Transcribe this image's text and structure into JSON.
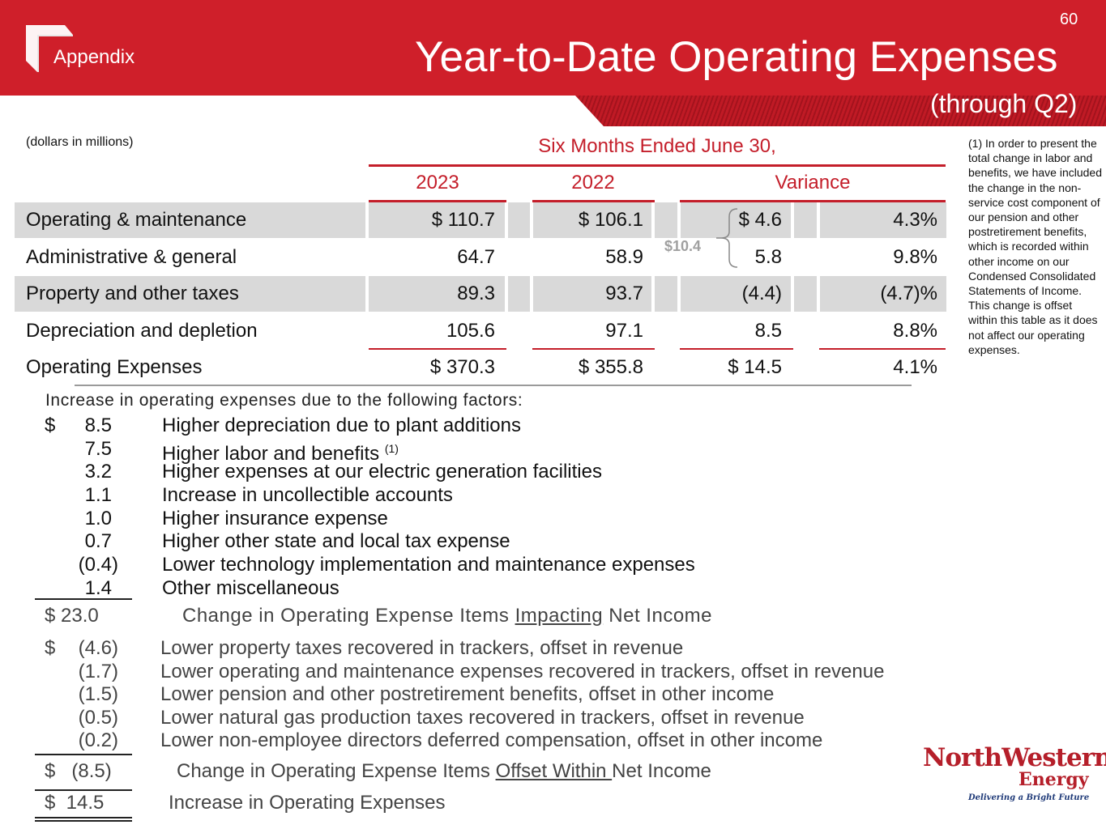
{
  "header": {
    "page_number": "60",
    "section": "Appendix",
    "title": "Year-to-Date Operating Expenses",
    "subtitle": "(through Q2)"
  },
  "table": {
    "units_note": "(dollars in millions)",
    "period_header": "Six Months Ended June 30,",
    "columns": [
      "2023",
      "2022",
      "Variance"
    ],
    "rows": [
      {
        "label": "Operating & maintenance",
        "y2023": "$ 110.7",
        "y2022": "$ 106.1",
        "var": "$ 4.6",
        "pct": "4.3%"
      },
      {
        "label": "Administrative & general",
        "y2023": "64.7",
        "y2022": "58.9",
        "var": "5.8",
        "pct": "9.8%"
      },
      {
        "label": "Property and other taxes",
        "y2023": "89.3",
        "y2022": "93.7",
        "var": "(4.4)",
        "pct": "(4.7)%"
      },
      {
        "label": "Depreciation and depletion",
        "y2023": "105.6",
        "y2022": "97.1",
        "var": "8.5",
        "pct": "8.8%"
      }
    ],
    "total": {
      "label": "Operating Expenses",
      "y2023": "$ 370.3",
      "y2022": "$ 355.8",
      "var": "$ 14.5",
      "pct": "4.1%"
    },
    "bracket_label": "$10.4"
  },
  "footnote": "(1) In order to present the total change in labor and benefits, we have included the change in the non-service cost component of our pension and other postretirement benefits, which is recorded within other income on our Condensed Consolidated Statements of Income. This change is offset within this table as it does not affect our operating expenses.",
  "factors": {
    "heading": "Increase in operating expenses due to the following factors:",
    "dollar_sign": "$",
    "impacting_items": [
      {
        "amount": "8.5",
        "text": "Higher depreciation due to plant additions"
      },
      {
        "amount": "7.5",
        "text": "Higher labor and benefits",
        "footnote_ref": "(1)"
      },
      {
        "amount": "3.2",
        "text": "Higher expenses at our electric generation facilities"
      },
      {
        "amount": "1.1",
        "text": "Increase in uncollectible accounts"
      },
      {
        "amount": "1.0",
        "text": "Higher insurance expense"
      },
      {
        "amount": "0.7",
        "text": "Higher other state and local tax expense"
      },
      {
        "amount": "(0.4)",
        "text": "Lower technology implementation and maintenance expenses"
      },
      {
        "amount": "1.4",
        "text": "Other miscellaneous"
      }
    ],
    "impacting_total": {
      "amount": "$  23.0",
      "text_pre": "Change in Operating Expense Items ",
      "text_u": "Impacting",
      "text_post": " Net Income"
    },
    "offset_items": [
      {
        "amount": "(4.6)",
        "text": "Lower property taxes recovered in trackers, offset in revenue"
      },
      {
        "amount": "(1.7)",
        "text": "Lower operating and maintenance expenses recovered in trackers, offset in revenue"
      },
      {
        "amount": "(1.5)",
        "text": "Lower pension and other postretirement benefits, offset in other income"
      },
      {
        "amount": "(0.5)",
        "text": "Lower natural gas production taxes recovered in trackers, offset in revenue"
      },
      {
        "amount": "(0.2)",
        "text": "Lower non-employee directors deferred compensation, offset in other income"
      }
    ],
    "offset_total": {
      "amount": "$   (8.5)",
      "text_pre": "Change in Operating Expense Items ",
      "text_u": "Offset Within ",
      "text_post": "Net Income"
    },
    "grand_total": {
      "amount": "$  14.5",
      "text": "Increase in Operating Expenses"
    }
  },
  "logo": {
    "name_part1": "North",
    "name_part2": "Western",
    "name_part3": "Energy",
    "tagline": "Delivering a Bright Future"
  },
  "colors": {
    "brand_red": "#cf1f2a",
    "accent_red": "#c41e2a",
    "row_shade": "#d9d9d9"
  }
}
